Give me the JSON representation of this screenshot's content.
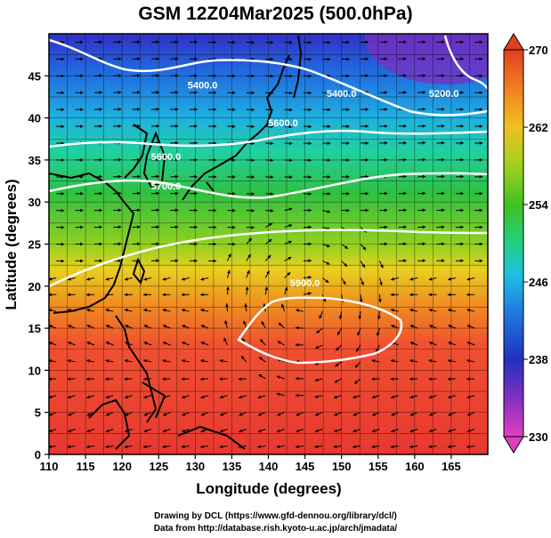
{
  "title": "GSM 12Z04Mar2025 (500.0hPa)",
  "xaxis": {
    "label": "Longitude (degrees)",
    "min": 110,
    "max": 170,
    "ticks": [
      110,
      115,
      120,
      125,
      130,
      135,
      140,
      145,
      150,
      155,
      160,
      165
    ]
  },
  "yaxis": {
    "label": "Latitude  (degrees)",
    "min": 0,
    "max": 50,
    "ticks": [
      0,
      5,
      10,
      15,
      20,
      25,
      30,
      35,
      40,
      45
    ]
  },
  "colorbar": {
    "min": 230,
    "max": 270,
    "ticks": [
      230,
      238,
      246,
      254,
      262,
      270
    ],
    "colors": [
      "#e040c0",
      "#8030c0",
      "#2030c0",
      "#2080e0",
      "#20c0e0",
      "#20d080",
      "#40c020",
      "#a0d020",
      "#f0c020",
      "#f08020",
      "#e04020"
    ]
  },
  "contours": [
    {
      "label": "5400.0",
      "lon": 131,
      "lat": 43.5
    },
    {
      "label": "5400.0",
      "lon": 150,
      "lat": 42.5
    },
    {
      "label": "5200.0",
      "lon": 164,
      "lat": 42.5
    },
    {
      "label": "5600.0",
      "lon": 142,
      "lat": 39
    },
    {
      "label": "5600.0",
      "lon": 126,
      "lat": 35
    },
    {
      "label": "5700.0",
      "lon": 126,
      "lat": 31.5
    },
    {
      "label": "5900.0",
      "lon": 145,
      "lat": 20
    }
  ],
  "credits": {
    "line1": "Drawing by DCL (https://www.gfd-dennou.org/library/dcl/)",
    "line2": "Data from http://database.rish.kyoto-u.ac.jp/arch/jmadata/"
  }
}
